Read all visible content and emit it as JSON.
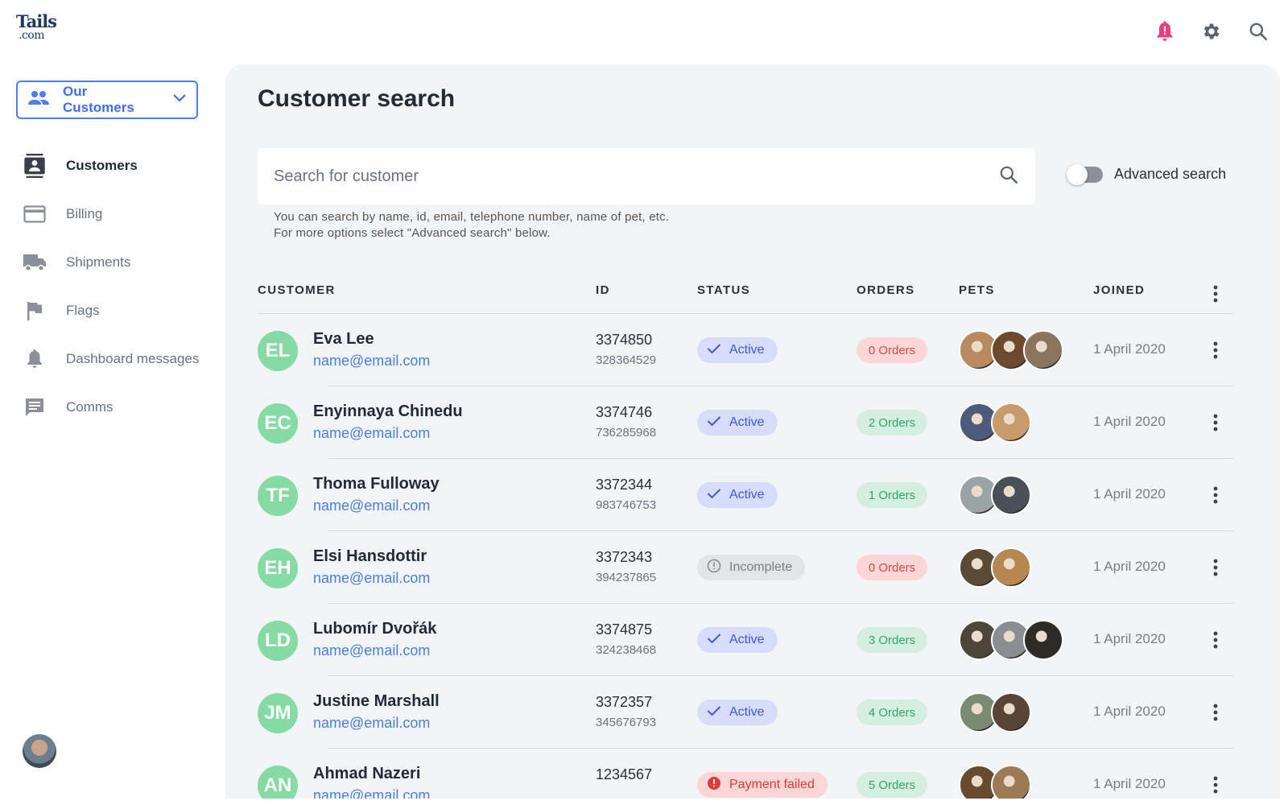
{
  "brand": {
    "logo_text": "Tails",
    "logo_sub": ".com"
  },
  "header": {
    "icons": [
      "bell-icon",
      "gear-icon",
      "search-icon"
    ],
    "bell_color": "#e8407f"
  },
  "sidebar": {
    "switcher_label": "Our Customers",
    "items": [
      {
        "label": "Customers",
        "icon": "contacts-icon",
        "active": true
      },
      {
        "label": "Billing",
        "icon": "credit-card-icon",
        "active": false
      },
      {
        "label": "Shipments",
        "icon": "truck-icon",
        "active": false
      },
      {
        "label": "Flags",
        "icon": "flag-icon",
        "active": false
      },
      {
        "label": "Dashboard messages",
        "icon": "bell-icon",
        "active": false
      },
      {
        "label": "Comms",
        "icon": "chat-icon",
        "active": false
      }
    ]
  },
  "main": {
    "title": "Customer search",
    "search": {
      "placeholder": "Search for customer",
      "helper_line1": "You can search by name, id, email, telephone number, name of pet, etc.",
      "helper_line2": "For more options select \"Advanced search\" below."
    },
    "advanced_search_label": "Advanced search",
    "columns": [
      "CUSTOMER",
      "ID",
      "STATUS",
      "ORDERS",
      "PETS",
      "JOINED"
    ],
    "rows": [
      {
        "initials": "EL",
        "name": "Eva Lee",
        "email": "name@email.com",
        "id": "3374850",
        "sub_id": "328364529",
        "status": "Active",
        "status_type": "active",
        "orders": "0 Orders",
        "orders_type": "zero",
        "pets": 3,
        "joined": "1 April 2020"
      },
      {
        "initials": "EC",
        "name": "Enyinnaya Chinedu",
        "email": "name@email.com",
        "id": "3374746",
        "sub_id": "736285968",
        "status": "Active",
        "status_type": "active",
        "orders": "2 Orders",
        "orders_type": "pos",
        "pets": 2,
        "joined": "1 April 2020"
      },
      {
        "initials": "TF",
        "name": "Thoma Fulloway",
        "email": "name@email.com",
        "id": "3372344",
        "sub_id": "983746753",
        "status": "Active",
        "status_type": "active",
        "orders": "1 Orders",
        "orders_type": "pos",
        "pets": 2,
        "joined": "1 April 2020"
      },
      {
        "initials": "EH",
        "name": "Elsi Hansdottir",
        "email": "name@email.com",
        "id": "3372343",
        "sub_id": "394237865",
        "status": "Incomplete",
        "status_type": "incomplete",
        "orders": "0 Orders",
        "orders_type": "zero",
        "pets": 2,
        "joined": "1 April 2020"
      },
      {
        "initials": "LD",
        "name": "Lubomír Dvořák",
        "email": "name@email.com",
        "id": "3374875",
        "sub_id": "324238468",
        "status": "Active",
        "status_type": "active",
        "orders": "3 Orders",
        "orders_type": "pos",
        "pets": 3,
        "joined": "1 April 2020"
      },
      {
        "initials": "JM",
        "name": "Justine Marshall",
        "email": "name@email.com",
        "id": "3372357",
        "sub_id": "345676793",
        "status": "Active",
        "status_type": "active",
        "orders": "4 Orders",
        "orders_type": "pos",
        "pets": 2,
        "joined": "1 April 2020"
      },
      {
        "initials": "AN",
        "name": "Ahmad Nazeri",
        "email": "name@email.com",
        "id": "1234567",
        "sub_id": "",
        "status": "Payment failed",
        "status_type": "failed",
        "orders": "5 Orders",
        "orders_type": "pos",
        "pets": 2,
        "joined": "1 April 2020"
      }
    ]
  },
  "colors": {
    "accent": "#3f6ee8",
    "avatar_bg": "#86dba4",
    "panel_bg": "#f3f4f6"
  }
}
